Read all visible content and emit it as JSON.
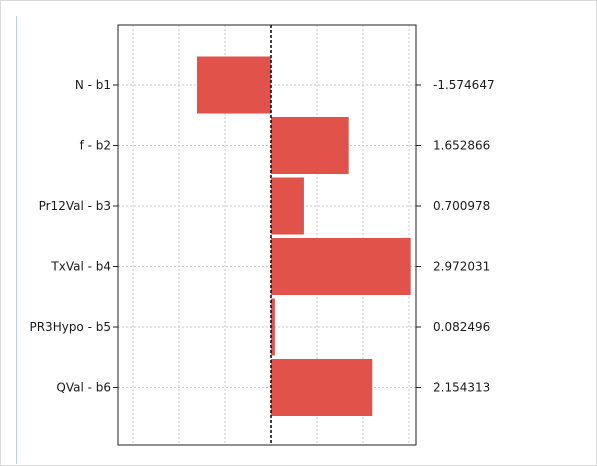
{
  "chart_data": {
    "type": "bar",
    "orientation": "horizontal",
    "categories": [
      "N - b1",
      "f - b2",
      "Pr12Val - b3",
      "TxVal - b4",
      "PR3Hypo - b5",
      "QVal - b6"
    ],
    "values": [
      -1.574647,
      1.652866,
      0.700978,
      2.972031,
      0.082496,
      2.154313
    ],
    "value_labels": [
      "-1.574647",
      "1.652866",
      "0.700978",
      "2.972031",
      "0.082496",
      "2.154313"
    ],
    "xlim": [
      -3.2,
      3.2
    ],
    "grid": true,
    "zero_line": "dashed",
    "bar_color": "#e0524a",
    "title": "",
    "xlabel": "",
    "ylabel": ""
  }
}
